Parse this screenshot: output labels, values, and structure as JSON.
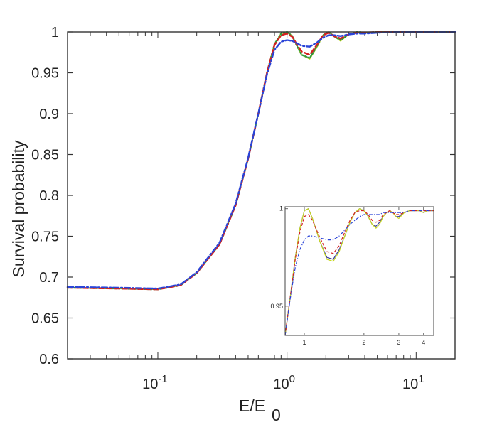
{
  "chart_data": {
    "type": "line",
    "xscale": "log",
    "xlim": [
      0.02,
      20
    ],
    "ylim": [
      0.6,
      1.0
    ],
    "xlabel": "E/E",
    "xlabel_sub": "0",
    "ylabel": "Survival probability",
    "yticks": [
      "1",
      "0.95",
      "0.9",
      "0.85",
      "0.8",
      "0.75",
      "0.7",
      "0.65",
      "0.6"
    ],
    "xticks": [
      {
        "base": "10",
        "exp": "-1",
        "value": 0.1
      },
      {
        "base": "10",
        "exp": "0",
        "value": 1
      },
      {
        "base": "10",
        "exp": "1",
        "value": 10
      }
    ],
    "grid": false,
    "series": [
      {
        "color": "#3a3aa0",
        "style": "solid",
        "width": 1.6,
        "x": [
          0.02,
          0.05,
          0.1,
          0.15,
          0.2,
          0.3,
          0.4,
          0.5,
          0.6,
          0.7,
          0.8,
          0.9,
          1.0,
          1.1,
          1.2,
          1.3,
          1.5,
          1.7,
          1.9,
          2.1,
          2.3,
          2.6,
          3.0,
          3.5,
          4,
          5,
          7,
          10,
          20
        ],
        "y": [
          0.687,
          0.686,
          0.685,
          0.69,
          0.705,
          0.74,
          0.788,
          0.845,
          0.9,
          0.95,
          0.985,
          0.998,
          1.0,
          0.995,
          0.982,
          0.972,
          0.968,
          0.982,
          0.996,
          1.0,
          0.995,
          0.99,
          0.997,
          1.0,
          0.999,
          1.0,
          1.0,
          1.0,
          1.0
        ]
      },
      {
        "color": "#c8d820",
        "style": "solid",
        "width": 1.6,
        "x": [
          0.02,
          0.05,
          0.1,
          0.15,
          0.2,
          0.3,
          0.4,
          0.5,
          0.6,
          0.7,
          0.8,
          0.9,
          1.0,
          1.1,
          1.2,
          1.3,
          1.5,
          1.7,
          1.9,
          2.1,
          2.3,
          2.6,
          3.0,
          3.5,
          4,
          5,
          7,
          10,
          20
        ],
        "y": [
          0.687,
          0.686,
          0.685,
          0.69,
          0.705,
          0.74,
          0.788,
          0.845,
          0.9,
          0.95,
          0.985,
          0.998,
          1.0,
          0.995,
          0.982,
          0.972,
          0.967,
          0.981,
          0.996,
          1.0,
          0.995,
          0.989,
          0.997,
          1.0,
          0.999,
          1.0,
          1.0,
          1.0,
          1.0
        ]
      },
      {
        "color": "#2e9a3a",
        "style": "dotted",
        "width": 2.4,
        "x": [
          0.02,
          0.05,
          0.1,
          0.15,
          0.2,
          0.3,
          0.4,
          0.5,
          0.6,
          0.7,
          0.8,
          0.9,
          1.0,
          1.1,
          1.2,
          1.3,
          1.5,
          1.7,
          1.9,
          2.1,
          2.3,
          2.6,
          3.0,
          3.5,
          4,
          5,
          7,
          10,
          20
        ],
        "y": [
          0.687,
          0.686,
          0.685,
          0.69,
          0.705,
          0.74,
          0.788,
          0.845,
          0.9,
          0.95,
          0.985,
          0.998,
          1.0,
          0.995,
          0.982,
          0.972,
          0.968,
          0.982,
          0.996,
          1.0,
          0.995,
          0.99,
          0.997,
          1.0,
          0.999,
          1.0,
          1.0,
          1.0,
          1.0
        ]
      },
      {
        "color": "#d42020",
        "style": "dashed",
        "width": 2.4,
        "x": [
          0.02,
          0.05,
          0.1,
          0.15,
          0.2,
          0.3,
          0.4,
          0.5,
          0.6,
          0.7,
          0.8,
          0.9,
          1.0,
          1.1,
          1.2,
          1.3,
          1.5,
          1.7,
          1.9,
          2.1,
          2.3,
          2.6,
          3.0,
          3.5,
          4,
          5,
          7,
          10,
          20
        ],
        "y": [
          0.687,
          0.686,
          0.685,
          0.69,
          0.705,
          0.74,
          0.788,
          0.845,
          0.9,
          0.95,
          0.984,
          0.996,
          0.998,
          0.994,
          0.984,
          0.976,
          0.972,
          0.984,
          0.996,
          0.999,
          0.995,
          0.992,
          0.997,
          0.999,
          0.999,
          1.0,
          1.0,
          1.0,
          1.0
        ]
      },
      {
        "color": "#2a44d8",
        "style": "dashdot",
        "width": 2.4,
        "x": [
          0.02,
          0.05,
          0.1,
          0.15,
          0.2,
          0.3,
          0.4,
          0.5,
          0.6,
          0.7,
          0.8,
          0.9,
          1.0,
          1.1,
          1.2,
          1.3,
          1.5,
          1.7,
          1.9,
          2.1,
          2.3,
          2.6,
          3.0,
          3.5,
          4,
          5,
          7,
          10,
          20
        ],
        "y": [
          0.688,
          0.687,
          0.686,
          0.691,
          0.706,
          0.742,
          0.79,
          0.846,
          0.9,
          0.948,
          0.978,
          0.988,
          0.99,
          0.989,
          0.986,
          0.983,
          0.982,
          0.987,
          0.993,
          0.996,
          0.996,
          0.995,
          0.997,
          0.998,
          0.998,
          0.999,
          1.0,
          1.0,
          1.0
        ]
      }
    ],
    "inset": {
      "xscale": "log",
      "xlim": [
        0.8,
        4.5
      ],
      "ylim": [
        0.935,
        1.001
      ],
      "xticks": [
        "1",
        "2",
        "3",
        "4"
      ],
      "yticks": [
        "1",
        "0.95"
      ],
      "series": [
        {
          "color": "#3a3aa0",
          "style": "solid",
          "width": 1.2,
          "x": [
            0.8,
            0.85,
            0.9,
            0.95,
            1.0,
            1.05,
            1.1,
            1.2,
            1.3,
            1.4,
            1.5,
            1.6,
            1.7,
            1.8,
            1.9,
            2.0,
            2.1,
            2.2,
            2.3,
            2.4,
            2.5,
            2.6,
            2.7,
            2.8,
            2.9,
            3.0,
            3.2,
            3.4,
            3.6,
            3.8,
            4.0,
            4.2,
            4.5
          ],
          "y": [
            0.935,
            0.955,
            0.975,
            0.99,
            0.999,
            1.0,
            0.995,
            0.983,
            0.975,
            0.974,
            0.979,
            0.986,
            0.993,
            0.998,
            1.0,
            0.999,
            0.996,
            0.992,
            0.991,
            0.993,
            0.996,
            0.998,
            0.999,
            0.998,
            0.996,
            0.996,
            0.998,
            0.999,
            0.999,
            0.999,
            0.998,
            0.999,
            0.999
          ]
        },
        {
          "color": "#c8d820",
          "style": "solid",
          "width": 1.2,
          "x": [
            0.8,
            0.85,
            0.9,
            0.95,
            1.0,
            1.05,
            1.1,
            1.2,
            1.3,
            1.4,
            1.5,
            1.6,
            1.7,
            1.8,
            1.9,
            2.0,
            2.1,
            2.2,
            2.3,
            2.4,
            2.5,
            2.6,
            2.7,
            2.8,
            2.9,
            3.0,
            3.2,
            3.4,
            3.6,
            3.8,
            4.0,
            4.2,
            4.5
          ],
          "y": [
            0.935,
            0.955,
            0.975,
            0.99,
            0.999,
            1.0,
            0.995,
            0.983,
            0.974,
            0.973,
            0.978,
            0.986,
            0.993,
            0.998,
            1.0,
            0.999,
            0.996,
            0.992,
            0.99,
            0.992,
            0.996,
            0.998,
            0.999,
            0.998,
            0.996,
            0.995,
            0.998,
            0.999,
            0.999,
            0.999,
            0.998,
            0.999,
            0.999
          ]
        },
        {
          "color": "#d42020",
          "style": "dashed",
          "width": 1.2,
          "x": [
            0.8,
            0.85,
            0.9,
            0.95,
            1.0,
            1.05,
            1.1,
            1.2,
            1.3,
            1.4,
            1.5,
            1.6,
            1.7,
            1.8,
            1.9,
            2.0,
            2.1,
            2.2,
            2.3,
            2.4,
            2.5,
            2.6,
            2.7,
            2.8,
            2.9,
            3.0,
            3.2,
            3.4,
            3.6,
            3.8,
            4.0,
            4.2,
            4.5
          ],
          "y": [
            0.935,
            0.955,
            0.974,
            0.988,
            0.996,
            0.997,
            0.994,
            0.985,
            0.978,
            0.977,
            0.981,
            0.988,
            0.994,
            0.998,
            0.999,
            0.999,
            0.997,
            0.994,
            0.993,
            0.994,
            0.997,
            0.998,
            0.999,
            0.998,
            0.997,
            0.997,
            0.998,
            0.999,
            0.999,
            0.999,
            0.999,
            0.999,
            0.999
          ]
        },
        {
          "color": "#2a44d8",
          "style": "dashdot",
          "width": 1.2,
          "x": [
            0.8,
            0.85,
            0.9,
            0.95,
            1.0,
            1.05,
            1.1,
            1.2,
            1.3,
            1.4,
            1.5,
            1.6,
            1.7,
            1.8,
            1.9,
            2.0,
            2.1,
            2.2,
            2.3,
            2.4,
            2.5,
            2.6,
            2.7,
            2.8,
            2.9,
            3.0,
            3.2,
            3.4,
            3.6,
            3.8,
            4.0,
            4.2,
            4.5
          ],
          "y": [
            0.935,
            0.954,
            0.97,
            0.979,
            0.984,
            0.986,
            0.986,
            0.985,
            0.984,
            0.984,
            0.986,
            0.989,
            0.992,
            0.994,
            0.996,
            0.997,
            0.997,
            0.997,
            0.997,
            0.997,
            0.998,
            0.998,
            0.998,
            0.998,
            0.998,
            0.998,
            0.998,
            0.999,
            0.999,
            0.999,
            0.999,
            0.999,
            0.999
          ]
        }
      ]
    }
  }
}
